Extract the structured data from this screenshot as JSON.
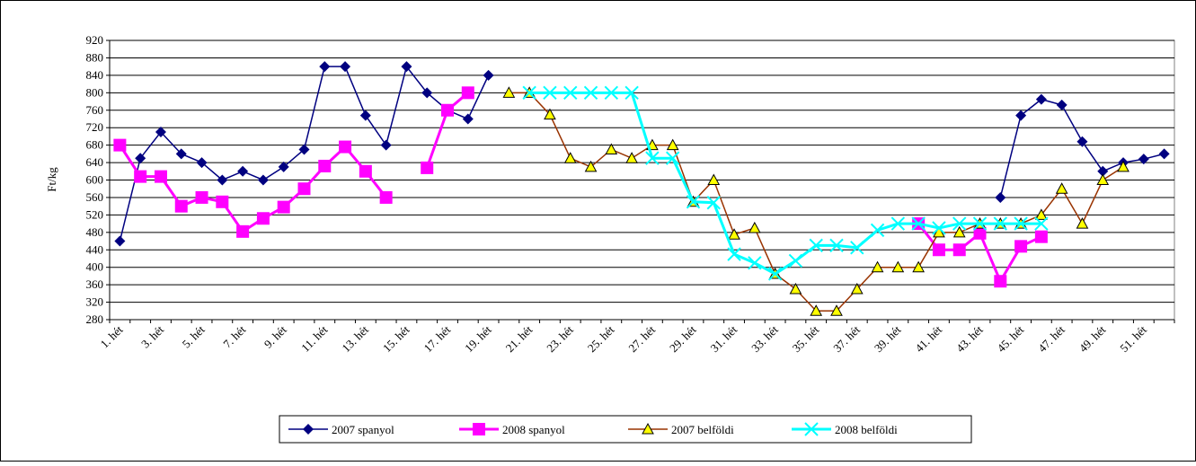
{
  "chart_data": {
    "type": "line",
    "ylabel": "Ft/kg",
    "categories": [
      "1. hét",
      null,
      "3. hét",
      null,
      "5. hét",
      null,
      "7. hét",
      null,
      "9. hét",
      null,
      "11. hét",
      null,
      "13. hét",
      null,
      "15. hét",
      null,
      "17. hét",
      null,
      "19. hét",
      null,
      "21. hét",
      null,
      "23. hét",
      null,
      "25. hét",
      null,
      "27. hét",
      null,
      "29. hét",
      null,
      "31. hét",
      null,
      "33. hét",
      null,
      "35. hét",
      null,
      "37. hét",
      null,
      "39. hét",
      null,
      "41. hét",
      null,
      "43. hét",
      null,
      "45. hét",
      null,
      "47. hét",
      null,
      "49. hét",
      null,
      "51. hét",
      null
    ],
    "series": [
      {
        "name": "2007 spanyol",
        "color": "#000080",
        "values": [
          460,
          650,
          710,
          660,
          640,
          600,
          620,
          600,
          630,
          670,
          860,
          860,
          748,
          680,
          860,
          800,
          760,
          740,
          840,
          null,
          null,
          null,
          null,
          null,
          null,
          null,
          null,
          null,
          null,
          null,
          null,
          null,
          null,
          null,
          null,
          null,
          null,
          null,
          null,
          null,
          null,
          null,
          null,
          560,
          748,
          785,
          772,
          688,
          620,
          640,
          648,
          660
        ]
      },
      {
        "name": "2008 spanyol",
        "color": "#ff00ff",
        "values": [
          680,
          608,
          608,
          540,
          560,
          550,
          482,
          512,
          538,
          580,
          632,
          676,
          620,
          560,
          null,
          628,
          760,
          800,
          null,
          null,
          null,
          null,
          null,
          null,
          null,
          null,
          null,
          null,
          null,
          null,
          null,
          null,
          null,
          null,
          null,
          null,
          null,
          null,
          null,
          500,
          440,
          440,
          478,
          368,
          448,
          470,
          null,
          null,
          null,
          null,
          null,
          null
        ]
      },
      {
        "name": "2007 belföldi",
        "color": "#993300",
        "values": [
          null,
          null,
          null,
          null,
          null,
          null,
          null,
          null,
          null,
          null,
          null,
          null,
          null,
          null,
          null,
          null,
          null,
          null,
          null,
          800,
          800,
          750,
          650,
          630,
          670,
          650,
          680,
          680,
          550,
          600,
          475,
          490,
          385,
          350,
          300,
          300,
          350,
          400,
          400,
          400,
          480,
          480,
          500,
          500,
          500,
          520,
          580,
          500,
          600,
          630,
          null,
          null
        ]
      },
      {
        "name": "2008 belföldi",
        "color": "#00ffff",
        "values": [
          null,
          null,
          null,
          null,
          null,
          null,
          null,
          null,
          null,
          null,
          null,
          null,
          null,
          null,
          null,
          null,
          null,
          null,
          null,
          null,
          800,
          800,
          800,
          800,
          800,
          800,
          650,
          650,
          550,
          548,
          430,
          410,
          385,
          415,
          450,
          450,
          445,
          485,
          500,
          500,
          490,
          500,
          500,
          500,
          500,
          500,
          null,
          null,
          null,
          null,
          null,
          null
        ]
      }
    ],
    "ylim": [
      280,
      920
    ],
    "yticks": [
      280,
      320,
      360,
      400,
      440,
      480,
      520,
      560,
      600,
      640,
      680,
      720,
      760,
      800,
      840,
      880,
      920
    ],
    "grid": true,
    "legend": "bottom"
  }
}
